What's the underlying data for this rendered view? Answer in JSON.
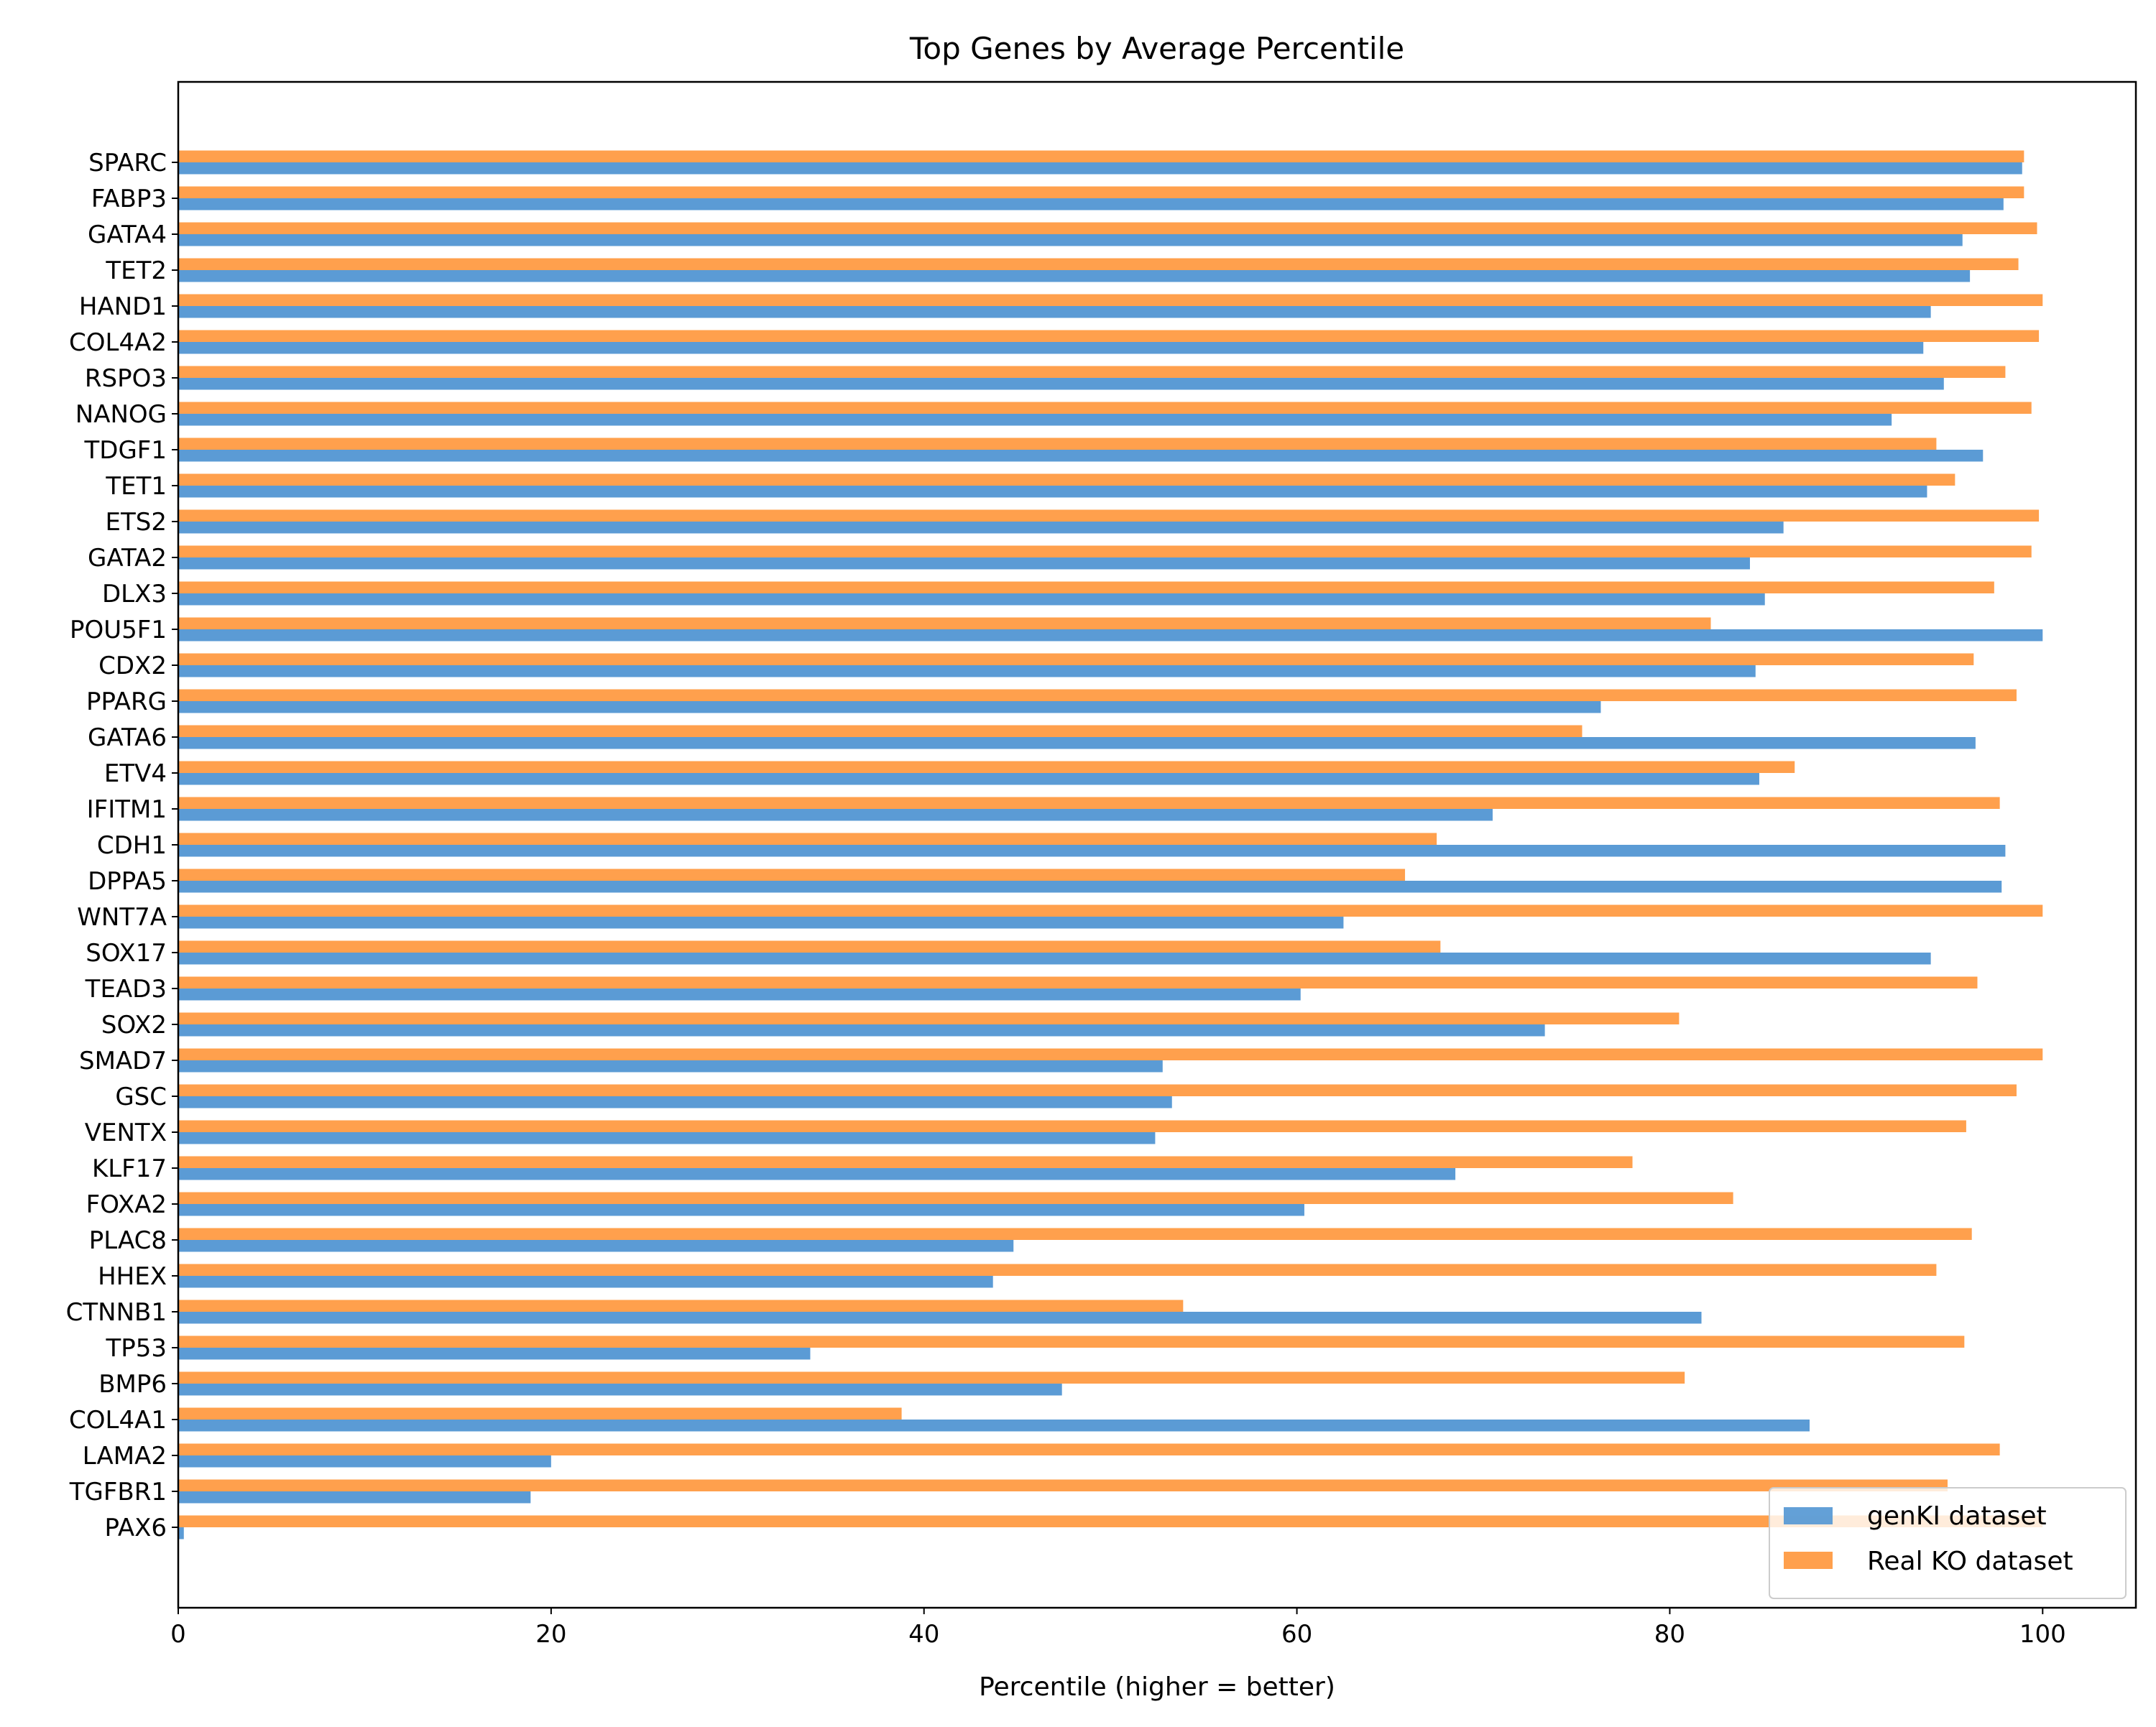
{
  "chart_data": {
    "type": "bar",
    "orientation": "horizontal",
    "title": "Top Genes by Average Percentile",
    "xlabel": "Percentile (higher = better)",
    "ylabel": "",
    "xlim": [
      0,
      105
    ],
    "xticks": [
      0,
      20,
      40,
      60,
      80,
      100
    ],
    "grid": false,
    "legend_position": "lower-right",
    "categories": [
      "SPARC",
      "FABP3",
      "GATA4",
      "TET2",
      "HAND1",
      "COL4A2",
      "RSPO3",
      "NANOG",
      "TDGF1",
      "TET1",
      "ETS2",
      "GATA2",
      "DLX3",
      "POU5F1",
      "CDX2",
      "PPARG",
      "GATA6",
      "ETV4",
      "IFITM1",
      "CDH1",
      "DPPA5",
      "WNT7A",
      "SOX17",
      "TEAD3",
      "SOX2",
      "SMAD7",
      "GSC",
      "VENTX",
      "KLF17",
      "FOXA2",
      "PLAC8",
      "HHEX",
      "CTNNB1",
      "TP53",
      "BMP6",
      "COL4A1",
      "LAMA2",
      "TGFBR1",
      "PAX6"
    ],
    "series": [
      {
        "name": "genKI dataset",
        "color": "#5b9bd5",
        "values": [
          98.9,
          97.9,
          95.7,
          96.1,
          94.0,
          93.6,
          94.7,
          91.9,
          96.8,
          93.8,
          86.1,
          84.3,
          85.1,
          100.0,
          84.6,
          76.3,
          96.4,
          84.8,
          70.5,
          98.0,
          97.8,
          62.5,
          94.0,
          60.2,
          73.3,
          52.8,
          53.3,
          52.4,
          68.5,
          60.4,
          44.8,
          43.7,
          81.7,
          33.9,
          47.4,
          87.5,
          20.0,
          18.9,
          0.3
        ]
      },
      {
        "name": "Real KO dataset",
        "color": "#ffa04d",
        "values": [
          99.0,
          99.0,
          99.7,
          98.7,
          100.0,
          99.8,
          98.0,
          99.4,
          94.3,
          95.3,
          99.8,
          99.4,
          97.4,
          82.2,
          96.3,
          98.6,
          75.3,
          86.7,
          97.7,
          67.5,
          65.8,
          100.0,
          67.7,
          96.5,
          80.5,
          100.0,
          98.6,
          95.9,
          78.0,
          83.4,
          96.2,
          94.3,
          53.9,
          95.8,
          80.8,
          38.8,
          97.7,
          94.9,
          100.0
        ]
      }
    ]
  }
}
